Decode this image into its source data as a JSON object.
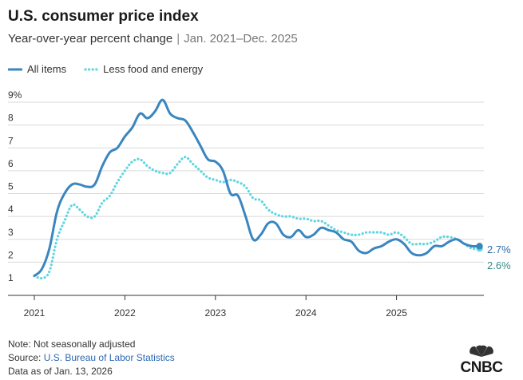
{
  "header": {
    "title": "U.S. consumer price index",
    "subtitle_main": "Year-over-year percent change",
    "subtitle_sep": "|",
    "subtitle_range": "Jan. 2021–Dec. 2025"
  },
  "legend": {
    "all_items": "All items",
    "core": "Less food and energy"
  },
  "footer": {
    "note": "Note: Not seasonally adjusted",
    "source_prefix": "Source: ",
    "source_name": "U.S. Bureau of Labor Statistics",
    "data_as_of": "Data as of Jan. 13, 2026"
  },
  "logo": {
    "text": "CNBC",
    "icon": "cnbc-peacock-logo"
  },
  "colors": {
    "all_items": "#3a86bf",
    "core": "#5fd6e0",
    "grid": "#d9d9d9",
    "axis": "#333333",
    "core_label": "#3a8a8a",
    "all_label": "#2d6ea8"
  },
  "chart_data": {
    "type": "line",
    "x": [
      "2021-01",
      "2021-02",
      "2021-03",
      "2021-04",
      "2021-05",
      "2021-06",
      "2021-07",
      "2021-08",
      "2021-09",
      "2021-10",
      "2021-11",
      "2021-12",
      "2022-01",
      "2022-02",
      "2022-03",
      "2022-04",
      "2022-05",
      "2022-06",
      "2022-07",
      "2022-08",
      "2022-09",
      "2022-10",
      "2022-11",
      "2022-12",
      "2023-01",
      "2023-02",
      "2023-03",
      "2023-04",
      "2023-05",
      "2023-06",
      "2023-07",
      "2023-08",
      "2023-09",
      "2023-10",
      "2023-11",
      "2023-12",
      "2024-01",
      "2024-02",
      "2024-03",
      "2024-04",
      "2024-05",
      "2024-06",
      "2024-07",
      "2024-08",
      "2024-09",
      "2024-10",
      "2024-11",
      "2024-12",
      "2025-01",
      "2025-02",
      "2025-03",
      "2025-04",
      "2025-05",
      "2025-06",
      "2025-07",
      "2025-08",
      "2025-09",
      "2025-10",
      "2025-11",
      "2025-12"
    ],
    "series": [
      {
        "name": "All items",
        "style": "solid",
        "values": [
          1.4,
          1.7,
          2.6,
          4.2,
          5.0,
          5.4,
          5.4,
          5.3,
          5.4,
          6.2,
          6.8,
          7.0,
          7.5,
          7.9,
          8.5,
          8.3,
          8.6,
          9.1,
          8.5,
          8.3,
          8.2,
          7.7,
          7.1,
          6.5,
          6.4,
          6.0,
          5.0,
          4.9,
          4.0,
          3.0,
          3.2,
          3.7,
          3.7,
          3.2,
          3.1,
          3.4,
          3.1,
          3.2,
          3.5,
          3.4,
          3.3,
          3.0,
          2.9,
          2.5,
          2.4,
          2.6,
          2.7,
          2.9,
          3.0,
          2.8,
          2.4,
          2.3,
          2.4,
          2.7,
          2.7,
          2.9,
          3.0,
          2.8,
          2.7,
          2.7
        ]
      },
      {
        "name": "Less food and energy",
        "style": "dotted",
        "values": [
          1.4,
          1.3,
          1.6,
          3.0,
          3.8,
          4.5,
          4.3,
          4.0,
          4.0,
          4.6,
          4.9,
          5.5,
          6.0,
          6.4,
          6.5,
          6.2,
          6.0,
          5.9,
          5.9,
          6.3,
          6.6,
          6.3,
          6.0,
          5.7,
          5.6,
          5.5,
          5.6,
          5.5,
          5.3,
          4.8,
          4.7,
          4.3,
          4.1,
          4.0,
          4.0,
          3.9,
          3.9,
          3.8,
          3.8,
          3.6,
          3.4,
          3.3,
          3.2,
          3.2,
          3.3,
          3.3,
          3.3,
          3.2,
          3.3,
          3.1,
          2.8,
          2.8,
          2.8,
          2.9,
          3.1,
          3.1,
          3.0,
          2.8,
          2.6,
          2.6
        ]
      }
    ],
    "end_labels": [
      "2.7%",
      "2.6%"
    ],
    "y_ticks": [
      "9%",
      "8",
      "7",
      "6",
      "5",
      "4",
      "3",
      "2",
      "1"
    ],
    "x_ticks": [
      "2021",
      "2022",
      "2023",
      "2024",
      "2025"
    ],
    "ylim": [
      1,
      9
    ],
    "grid": true,
    "legend_position": "top-left"
  }
}
